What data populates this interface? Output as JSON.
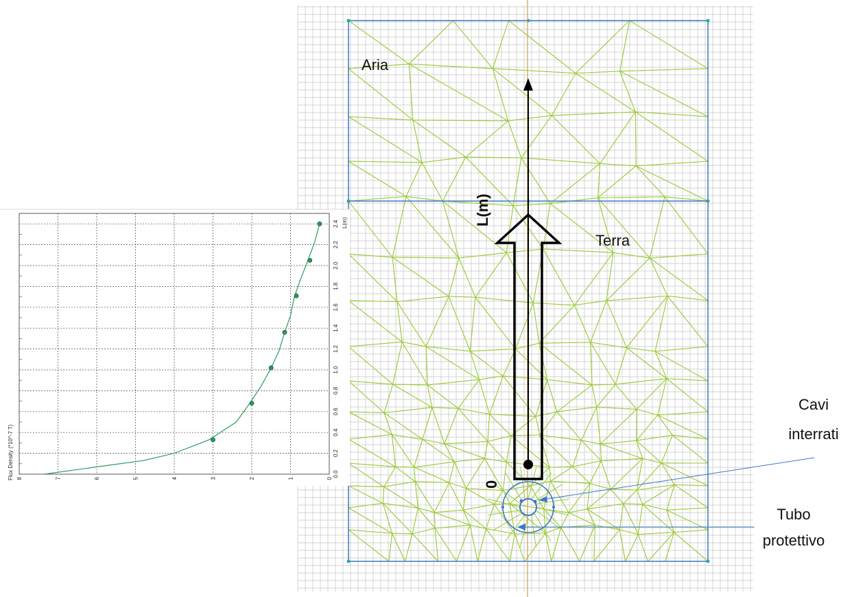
{
  "labels": {
    "aria": "Aria",
    "terra": "Terra",
    "axis_name": "L(m)",
    "origin": "0",
    "cables_line1": "Cavi",
    "cables_line2": "interrati",
    "tube_line1": "Tubo",
    "tube_line2": "protettivo"
  },
  "colors": {
    "mesh": "#9ccc3c",
    "boundary": "#3a78c8",
    "grid": "#c4c4c4",
    "axis": "#c8a050",
    "curve": "#2e9960"
  },
  "chart_data": {
    "type": "line",
    "title": "",
    "xlabel": "Flux Density (*10^-7 T)",
    "ylabel": "L(m)",
    "x_orientation": "reversed",
    "xlim": [
      0,
      8
    ],
    "ylim": [
      0,
      2.5
    ],
    "x_ticks": [
      "0",
      "1",
      "2",
      "3",
      "4",
      "5",
      "6",
      "7",
      "8"
    ],
    "y_ticks": [
      "0.0",
      "0.2",
      "0.4",
      "0.6",
      "0.8",
      "1.0",
      "1.2",
      "1.4",
      "1.6",
      "1.8",
      "2.0",
      "2.2",
      "2.4"
    ],
    "grid": true,
    "series": [
      {
        "curve": [
          [
            7.35,
            0.0
          ],
          [
            6.0,
            0.07
          ],
          [
            4.8,
            0.13
          ],
          [
            4.0,
            0.2
          ],
          [
            3.1,
            0.33
          ],
          [
            2.4,
            0.5
          ],
          [
            2.05,
            0.68
          ],
          [
            1.75,
            0.85
          ],
          [
            1.5,
            1.02
          ],
          [
            1.3,
            1.18
          ],
          [
            1.15,
            1.36
          ],
          [
            1.0,
            1.52
          ],
          [
            0.9,
            1.7
          ],
          [
            0.75,
            1.86
          ],
          [
            0.55,
            2.05
          ],
          [
            0.38,
            2.22
          ],
          [
            0.25,
            2.4
          ]
        ],
        "markers": [
          [
            3.0,
            0.33
          ],
          [
            2.0,
            0.68
          ],
          [
            1.5,
            1.02
          ],
          [
            1.15,
            1.36
          ],
          [
            0.85,
            1.71
          ],
          [
            0.5,
            2.05
          ],
          [
            0.25,
            2.4
          ]
        ]
      }
    ]
  }
}
